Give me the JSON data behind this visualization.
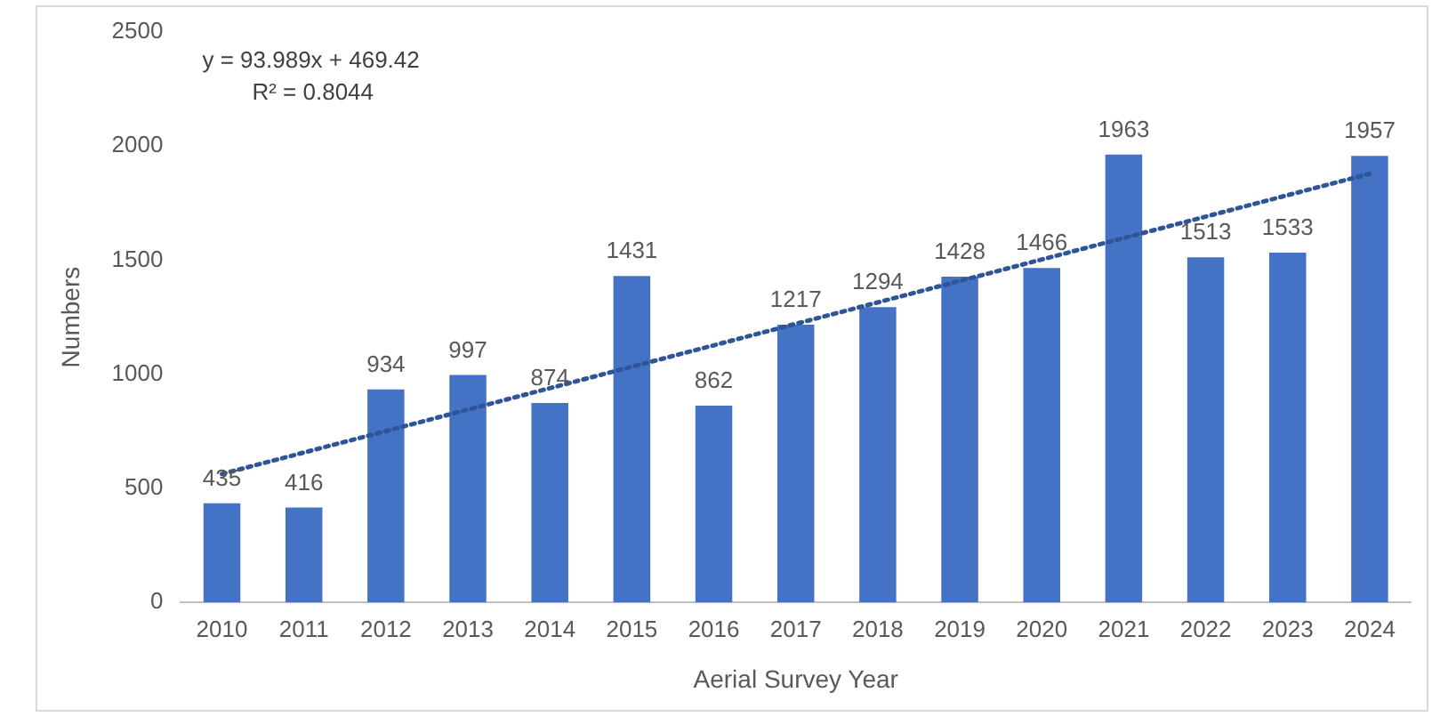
{
  "chart_data": {
    "type": "bar",
    "xlabel": "Aerial Survey Year",
    "ylabel": "Numbers",
    "categories": [
      "2010",
      "2011",
      "2012",
      "2013",
      "2014",
      "2015",
      "2016",
      "2017",
      "2018",
      "2019",
      "2020",
      "2021",
      "2022",
      "2023",
      "2024"
    ],
    "series": [
      {
        "color": "#4472c4",
        "values": [
          435,
          416,
          934,
          997,
          874,
          1431,
          862,
          1217,
          1294,
          1428,
          1466,
          1963,
          1513,
          1533,
          1957
        ],
        "value_labels": [
          "435",
          "416",
          "934",
          "997",
          "874",
          "1431",
          "862",
          "1217",
          "1294",
          "1428",
          "1466",
          "1963",
          "1513",
          "1533",
          "1957"
        ]
      },
      {
        "type": "line",
        "color": "#2f5597",
        "line_style": "dotted",
        "marker": "none",
        "values": [
          563,
          null,
          null,
          null,
          null,
          null,
          null,
          null,
          null,
          null,
          null,
          null,
          null,
          null,
          1879
        ]
      }
    ],
    "ylim": [
      0,
      2500
    ],
    "yticks": [
      0,
      500,
      1000,
      1500,
      2000,
      2500
    ],
    "grid": false,
    "legend": false,
    "annotations": [
      "y = 93.989x + 469.42",
      "R² = 0.8044"
    ]
  }
}
